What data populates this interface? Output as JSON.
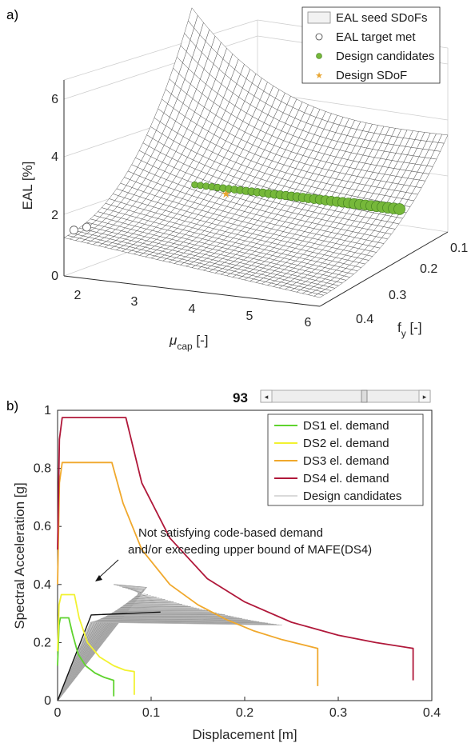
{
  "panel_a": {
    "label": "a)",
    "zlabel": "EAL [%]",
    "xlabel_main": "μ",
    "xlabel_sub": "cap",
    "xlabel_unit": " [-]",
    "ylabel_main": "f",
    "ylabel_sub": "y",
    "ylabel_unit": " [-]",
    "legend": [
      "EAL seed SDoFs",
      "EAL target met",
      "Design candidates",
      "Design SDoF"
    ]
  },
  "panel_b": {
    "label": "b)",
    "slider_value": "93",
    "annotation_line1": "Not satisfying code-based demand",
    "annotation_line2": "and/or exceeding upper bound of MAFE(DS4)"
  },
  "colors": {
    "ds1": "#5fd32e",
    "ds2": "#f2f230",
    "ds3": "#f0a82c",
    "ds4": "#b0183a",
    "candidates": "#b4b4b4",
    "candidate_dots": "#76b83a",
    "design_star": "#e8a530"
  },
  "chart_data": [
    {
      "type": "surface",
      "x_name": "mu_cap",
      "y_name": "f_y",
      "z_name": "EAL",
      "xlim": [
        1.5,
        6
      ],
      "ylim": [
        0.1,
        0.4
      ],
      "zlim": [
        0,
        6.5
      ],
      "x_ticks": [
        2,
        3,
        4,
        5,
        6
      ],
      "y_ticks": [
        0.1,
        0.2,
        0.3,
        0.4
      ],
      "z_ticks": [
        0,
        2,
        4,
        6
      ],
      "grid": true,
      "legend_position": "top-right",
      "surface_corner_values": [
        {
          "mu_cap": 1.5,
          "f_y": 0.4,
          "EAL": 1.3
        },
        {
          "mu_cap": 6.0,
          "f_y": 0.4,
          "EAL": 0.3
        },
        {
          "mu_cap": 6.0,
          "f_y": 0.1,
          "EAL": 3.3
        },
        {
          "mu_cap": 1.5,
          "f_y": 0.1,
          "EAL": 6.6
        }
      ],
      "target_met": [
        {
          "mu_cap": 1.6,
          "f_y": 0.39,
          "EAL": 1.5
        },
        {
          "mu_cap": 1.75,
          "f_y": 0.38,
          "EAL": 1.55
        }
      ],
      "design_candidates": [
        {
          "mu_cap": 2.3,
          "f_y": 0.2,
          "EAL": 1.6
        },
        {
          "mu_cap": 2.7,
          "f_y": 0.2,
          "EAL": 1.6
        },
        {
          "mu_cap": 3.1,
          "f_y": 0.2,
          "EAL": 1.6
        },
        {
          "mu_cap": 3.5,
          "f_y": 0.2,
          "EAL": 1.6
        },
        {
          "mu_cap": 3.9,
          "f_y": 0.2,
          "EAL": 1.6
        },
        {
          "mu_cap": 4.3,
          "f_y": 0.2,
          "EAL": 1.6
        },
        {
          "mu_cap": 4.7,
          "f_y": 0.2,
          "EAL": 1.6
        },
        {
          "mu_cap": 5.1,
          "f_y": 0.2,
          "EAL": 1.6
        },
        {
          "mu_cap": 5.5,
          "f_y": 0.2,
          "EAL": 1.6
        },
        {
          "mu_cap": 5.9,
          "f_y": 0.2,
          "EAL": 1.6
        }
      ],
      "design_sdof": {
        "mu_cap": 3.0,
        "f_y": 0.22,
        "EAL": 1.6
      }
    },
    {
      "type": "line",
      "xlabel": "Displacement [m]",
      "ylabel": "Spectral Acceleration [g]",
      "xlim": [
        0,
        0.4
      ],
      "ylim": [
        0,
        1
      ],
      "x_ticks": [
        0,
        0.1,
        0.2,
        0.3,
        0.4
      ],
      "y_ticks": [
        0,
        0.2,
        0.4,
        0.6,
        0.8,
        1
      ],
      "legend_position": "top-right",
      "series": [
        {
          "name": "DS1 el. demand",
          "color_key": "ds1",
          "x": [
            0,
            0.0015,
            0.003,
            0.0055,
            0.012,
            0.016,
            0.022,
            0.03,
            0.04,
            0.05,
            0.06,
            0.06
          ],
          "y": [
            0.12,
            0.26,
            0.285,
            0.285,
            0.285,
            0.23,
            0.16,
            0.12,
            0.095,
            0.08,
            0.07,
            0.015
          ]
        },
        {
          "name": "DS2 el. demand",
          "color_key": "ds2",
          "x": [
            0,
            0.0015,
            0.004,
            0.008,
            0.018,
            0.023,
            0.032,
            0.045,
            0.06,
            0.072,
            0.082,
            0.082
          ],
          "y": [
            0.17,
            0.33,
            0.365,
            0.365,
            0.365,
            0.285,
            0.2,
            0.15,
            0.12,
            0.105,
            0.1,
            0.02
          ]
        },
        {
          "name": "DS3 el. demand",
          "color_key": "ds3",
          "x": [
            0,
            0.002,
            0.005,
            0.011,
            0.058,
            0.07,
            0.09,
            0.12,
            0.15,
            0.18,
            0.21,
            0.24,
            0.278,
            0.278
          ],
          "y": [
            0.4,
            0.75,
            0.82,
            0.82,
            0.82,
            0.68,
            0.52,
            0.4,
            0.33,
            0.28,
            0.24,
            0.21,
            0.18,
            0.05
          ]
        },
        {
          "name": "DS4 el. demand",
          "color_key": "ds4",
          "x": [
            0,
            0.002,
            0.005,
            0.011,
            0.073,
            0.09,
            0.12,
            0.16,
            0.2,
            0.25,
            0.3,
            0.34,
            0.38,
            0.38
          ],
          "y": [
            0.52,
            0.9,
            0.975,
            0.975,
            0.975,
            0.75,
            0.56,
            0.42,
            0.34,
            0.27,
            0.225,
            0.2,
            0.18,
            0.07
          ]
        },
        {
          "name": "Design candidates",
          "color_key": "candidates",
          "family": true,
          "x": [
            0,
            0.04,
            0.24
          ],
          "y": [
            0,
            0.3,
            0.32
          ]
        }
      ],
      "highlight_candidate": {
        "x": [
          0,
          0.036,
          0.11
        ],
        "y": [
          0,
          0.295,
          0.305
        ]
      }
    }
  ]
}
